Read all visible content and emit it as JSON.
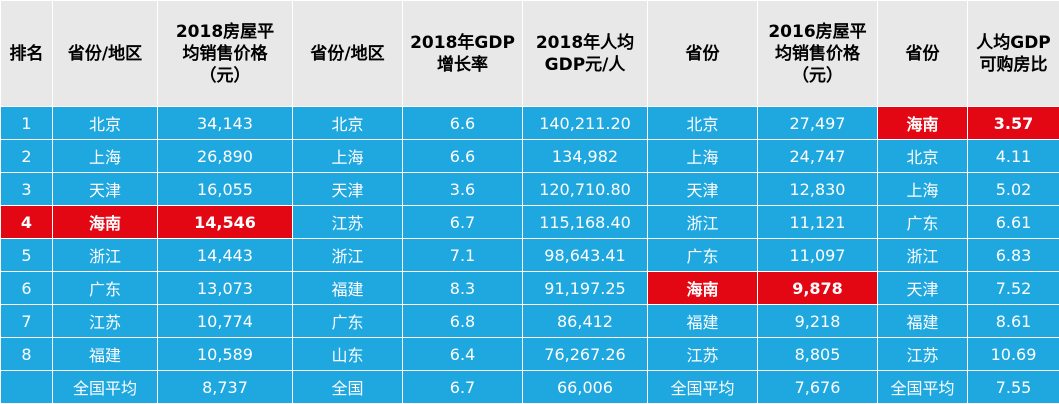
{
  "colors": {
    "header_bg": "#e8e8e8",
    "cell_bg": "#1fa8e0",
    "highlight_bg": "#e30613",
    "cell_text": "#ffffff",
    "header_text": "#000000"
  },
  "headers": [
    [
      "排名"
    ],
    [
      "省份/地区"
    ],
    [
      "2018房屋平",
      "均销售价格",
      "（元）"
    ],
    [
      "省份/地区"
    ],
    [
      "2018年GDP",
      "增长率"
    ],
    [
      "2018年人均",
      "GDP元/人"
    ],
    [
      "省份"
    ],
    [
      "2016房屋平",
      "均销售价格",
      "（元）"
    ],
    [
      "省份"
    ],
    [
      "人均GDP",
      "可购房比"
    ]
  ],
  "rows": [
    [
      "1",
      "北京",
      "34,143",
      "北京",
      "6.6",
      "140,211.20",
      "北京",
      "27,497",
      "海南",
      "3.57"
    ],
    [
      "2",
      "上海",
      "26,890",
      "上海",
      "6.6",
      "134,982",
      "上海",
      "24,747",
      "北京",
      "4.11"
    ],
    [
      "3",
      "天津",
      "16,055",
      "天津",
      "3.6",
      "120,710.80",
      "天津",
      "12,830",
      "上海",
      "5.02"
    ],
    [
      "4",
      "海南",
      "14,546",
      "江苏",
      "6.7",
      "115,168.40",
      "浙江",
      "11,121",
      "广东",
      "6.61"
    ],
    [
      "5",
      "浙江",
      "14,443",
      "浙江",
      "7.1",
      "98,643.41",
      "广东",
      "11,097",
      "浙江",
      "6.83"
    ],
    [
      "6",
      "广东",
      "13,073",
      "福建",
      "8.3",
      "91,197.25",
      "海南",
      "9,878",
      "天津",
      "7.52"
    ],
    [
      "7",
      "江苏",
      "10,774",
      "广东",
      "6.8",
      "86,412",
      "福建",
      "9,218",
      "福建",
      "8.61"
    ],
    [
      "8",
      "福建",
      "10,589",
      "山东",
      "6.4",
      "76,267.26",
      "江苏",
      "8,805",
      "江苏",
      "10.69"
    ],
    [
      "",
      "全国平均",
      "8,737",
      "全国",
      "6.7",
      "66,006",
      "全国平均",
      "7,676",
      "全国平均",
      "7.55"
    ]
  ],
  "highlighted_cells": [
    {
      "row": 0,
      "col": 8
    },
    {
      "row": 0,
      "col": 9
    },
    {
      "row": 3,
      "col": 0
    },
    {
      "row": 3,
      "col": 1
    },
    {
      "row": 3,
      "col": 2
    },
    {
      "row": 5,
      "col": 6
    },
    {
      "row": 5,
      "col": 7
    }
  ]
}
